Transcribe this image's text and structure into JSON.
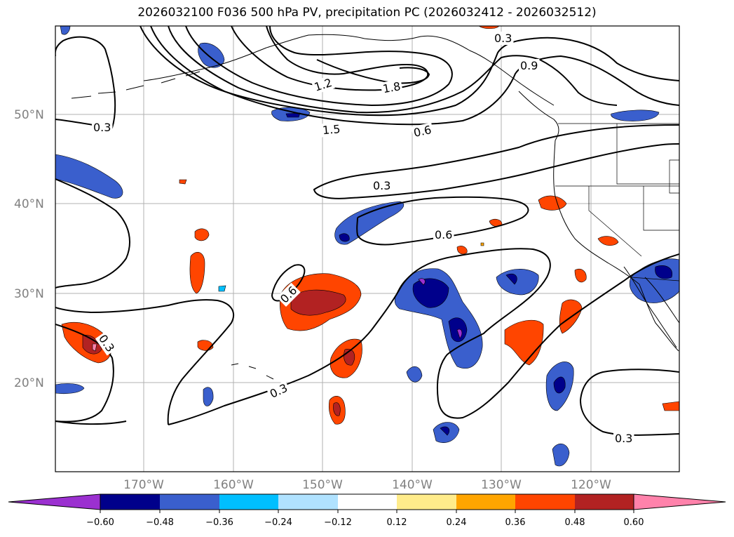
{
  "title": "2026032100 F036 500 hPa PV, precipitation PC (2026032412 - 2026032512)",
  "lat_labels": [
    "50°N",
    "40°N",
    "30°N",
    "20°N"
  ],
  "lon_labels": [
    "170°W",
    "160°W",
    "150°W",
    "140°W",
    "130°W",
    "120°W"
  ],
  "contour_labels": [
    "0.3",
    "0.9",
    "1.2",
    "1.8",
    "1.5",
    "0.6",
    "0.3",
    "0.3",
    "0.6",
    "0.6",
    "0.3",
    "0.3",
    "0.3"
  ],
  "colorbar": {
    "ticks": [
      "−0.60",
      "−0.48",
      "−0.36",
      "−0.24",
      "−0.12",
      "0.12",
      "0.24",
      "0.36",
      "0.48",
      "0.60"
    ],
    "colors": [
      "#9b30d0",
      "#00008b",
      "#3a5fcd",
      "#00bfff",
      "#b0e2ff",
      "#ffffff",
      "#ffec8b",
      "#ffa500",
      "#ff4500",
      "#b22222",
      "#ff82ab"
    ]
  }
}
